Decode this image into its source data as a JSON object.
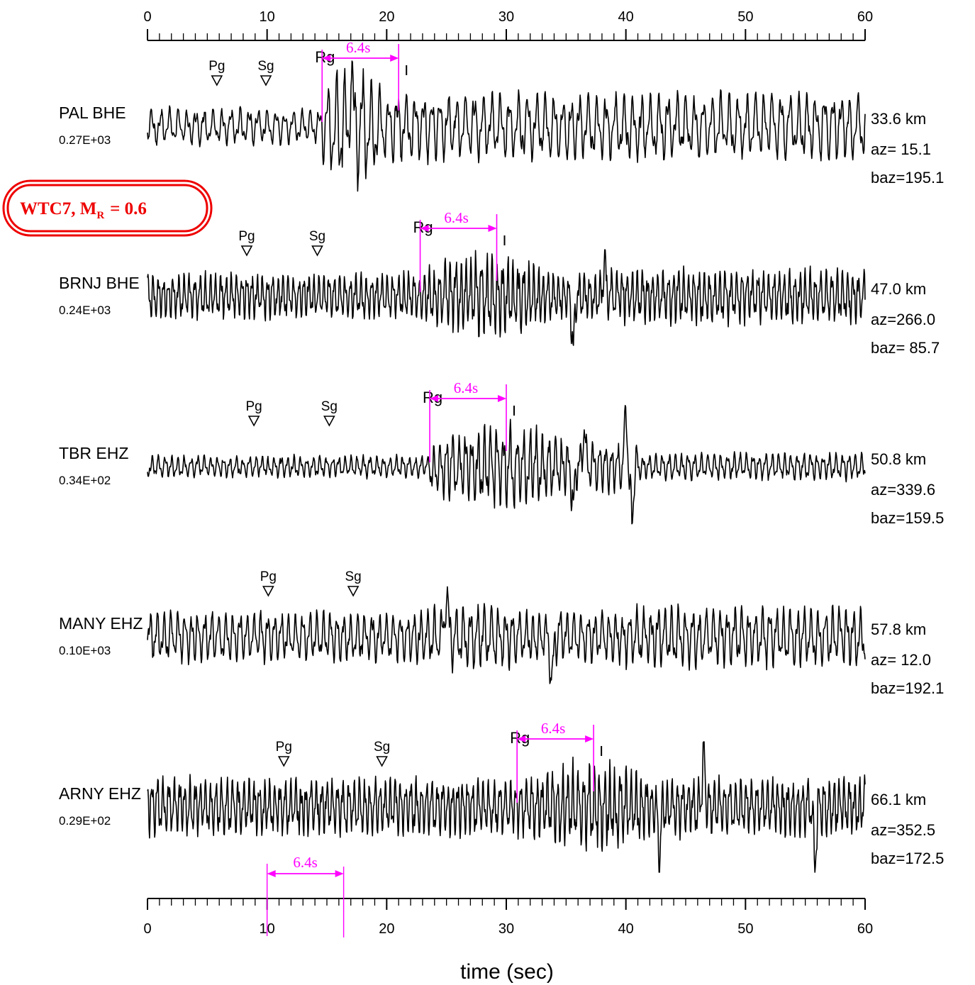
{
  "badge": {
    "event": "WTC7, M",
    "subscript": "R",
    "value": "= 0.6",
    "color": "#ee0000"
  },
  "chart_data": {
    "type": "line",
    "title": "",
    "xlabel": "time (sec)",
    "ylabel": "",
    "xlim": [
      0,
      60
    ],
    "x_ticks_major": [
      0,
      10,
      20,
      30,
      40,
      50,
      60
    ],
    "x_tick_labels": [
      "0",
      "10",
      "20",
      "30",
      "40",
      "50",
      "60"
    ],
    "x_ticks_minor_step": 1,
    "grid": false,
    "trace_color": "#000000",
    "annotation_color": "#ff00ff",
    "series": [
      {
        "name": "PAL BHE",
        "amplitude": "0.27E+03",
        "distance": "33.6 km",
        "az": "az= 15.1",
        "baz": "baz=195.1",
        "phases": [
          {
            "label": "Pg",
            "time": 5.8
          },
          {
            "label": "Sg",
            "time": 9.9
          }
        ],
        "rg": {
          "label": "Rg",
          "time": 14.6
        },
        "window": {
          "label": "6.4s",
          "start": 14.6,
          "end": 21.0
        },
        "character": {
          "noise": 0.3,
          "burst_start": 14.6,
          "burst_end": 22.0,
          "burst_gain": 1.0,
          "period": 0.75,
          "tail_gain": 0.55,
          "spikes": [
            [
              17.0,
              1.0
            ]
          ]
        }
      },
      {
        "name": "BRNJ BHE",
        "amplitude": "0.24E+03",
        "distance": "47.0 km",
        "az": "az=266.0",
        "baz": "baz= 85.7",
        "phases": [
          {
            "label": "Pg",
            "time": 8.3
          },
          {
            "label": "Sg",
            "time": 14.2
          }
        ],
        "rg": {
          "label": "Rg",
          "time": 22.8
        },
        "window": {
          "label": "6.4s",
          "start": 22.8,
          "end": 29.2
        },
        "character": {
          "noise": 0.38,
          "burst_start": 22.8,
          "burst_end": 38.0,
          "burst_gain": 0.7,
          "period": 0.45,
          "tail_gain": 0.45,
          "spikes": [
            [
              35.6,
              -1.0
            ],
            [
              38.2,
              0.6
            ]
          ]
        }
      },
      {
        "name": "TBR EHZ",
        "amplitude": "0.34E+02",
        "distance": "50.8 km",
        "az": "az=339.6",
        "baz": "baz=159.5",
        "phases": [
          {
            "label": "Pg",
            "time": 8.9
          },
          {
            "label": "Sg",
            "time": 15.2
          }
        ],
        "rg": {
          "label": "Rg",
          "time": 23.6
        },
        "window": {
          "label": "6.4s",
          "start": 23.6,
          "end": 30.0
        },
        "character": {
          "noise": 0.18,
          "burst_start": 23.6,
          "burst_end": 41.0,
          "burst_gain": 0.7,
          "period": 0.55,
          "tail_gain": 0.22,
          "spikes": [
            [
              40.0,
              1.0
            ],
            [
              40.5,
              -1.0
            ],
            [
              36.5,
              0.7
            ],
            [
              35.6,
              -0.8
            ]
          ]
        }
      },
      {
        "name": "MANY EHZ",
        "amplitude": "0.10E+03",
        "distance": "57.8 km",
        "az": "az= 12.0",
        "baz": "baz=192.1",
        "phases": [
          {
            "label": "Pg",
            "time": 10.1
          },
          {
            "label": "Sg",
            "time": 17.2
          }
        ],
        "rg": null,
        "window": null,
        "character": {
          "noise": 0.42,
          "burst_start": 20.0,
          "burst_end": 40.0,
          "burst_gain": 0.55,
          "period": 0.6,
          "tail_gain": 0.5,
          "spikes": [
            [
              33.8,
              -1.0
            ],
            [
              25.0,
              0.9
            ]
          ]
        }
      },
      {
        "name": "ARNY EHZ",
        "amplitude": "0.29E+02",
        "distance": "66.1 km",
        "az": "az=352.5",
        "baz": "baz=172.5",
        "phases": [
          {
            "label": "Pg",
            "time": 11.4
          },
          {
            "label": "Sg",
            "time": 19.6
          }
        ],
        "rg": {
          "label": "Rg",
          "time": 30.9
        },
        "window": {
          "label": "6.4s",
          "start": 30.9,
          "end": 37.3
        },
        "character": {
          "noise": 0.48,
          "burst_start": 30.9,
          "burst_end": 48.0,
          "burst_gain": 0.75,
          "period": 0.45,
          "tail_gain": 0.45,
          "spikes": [
            [
              55.8,
              -1.0
            ],
            [
              46.5,
              1.0
            ],
            [
              42.8,
              -0.9
            ]
          ]
        }
      }
    ],
    "scale_bar": {
      "label": "6.4s",
      "start": 10.0,
      "end": 16.4
    }
  }
}
